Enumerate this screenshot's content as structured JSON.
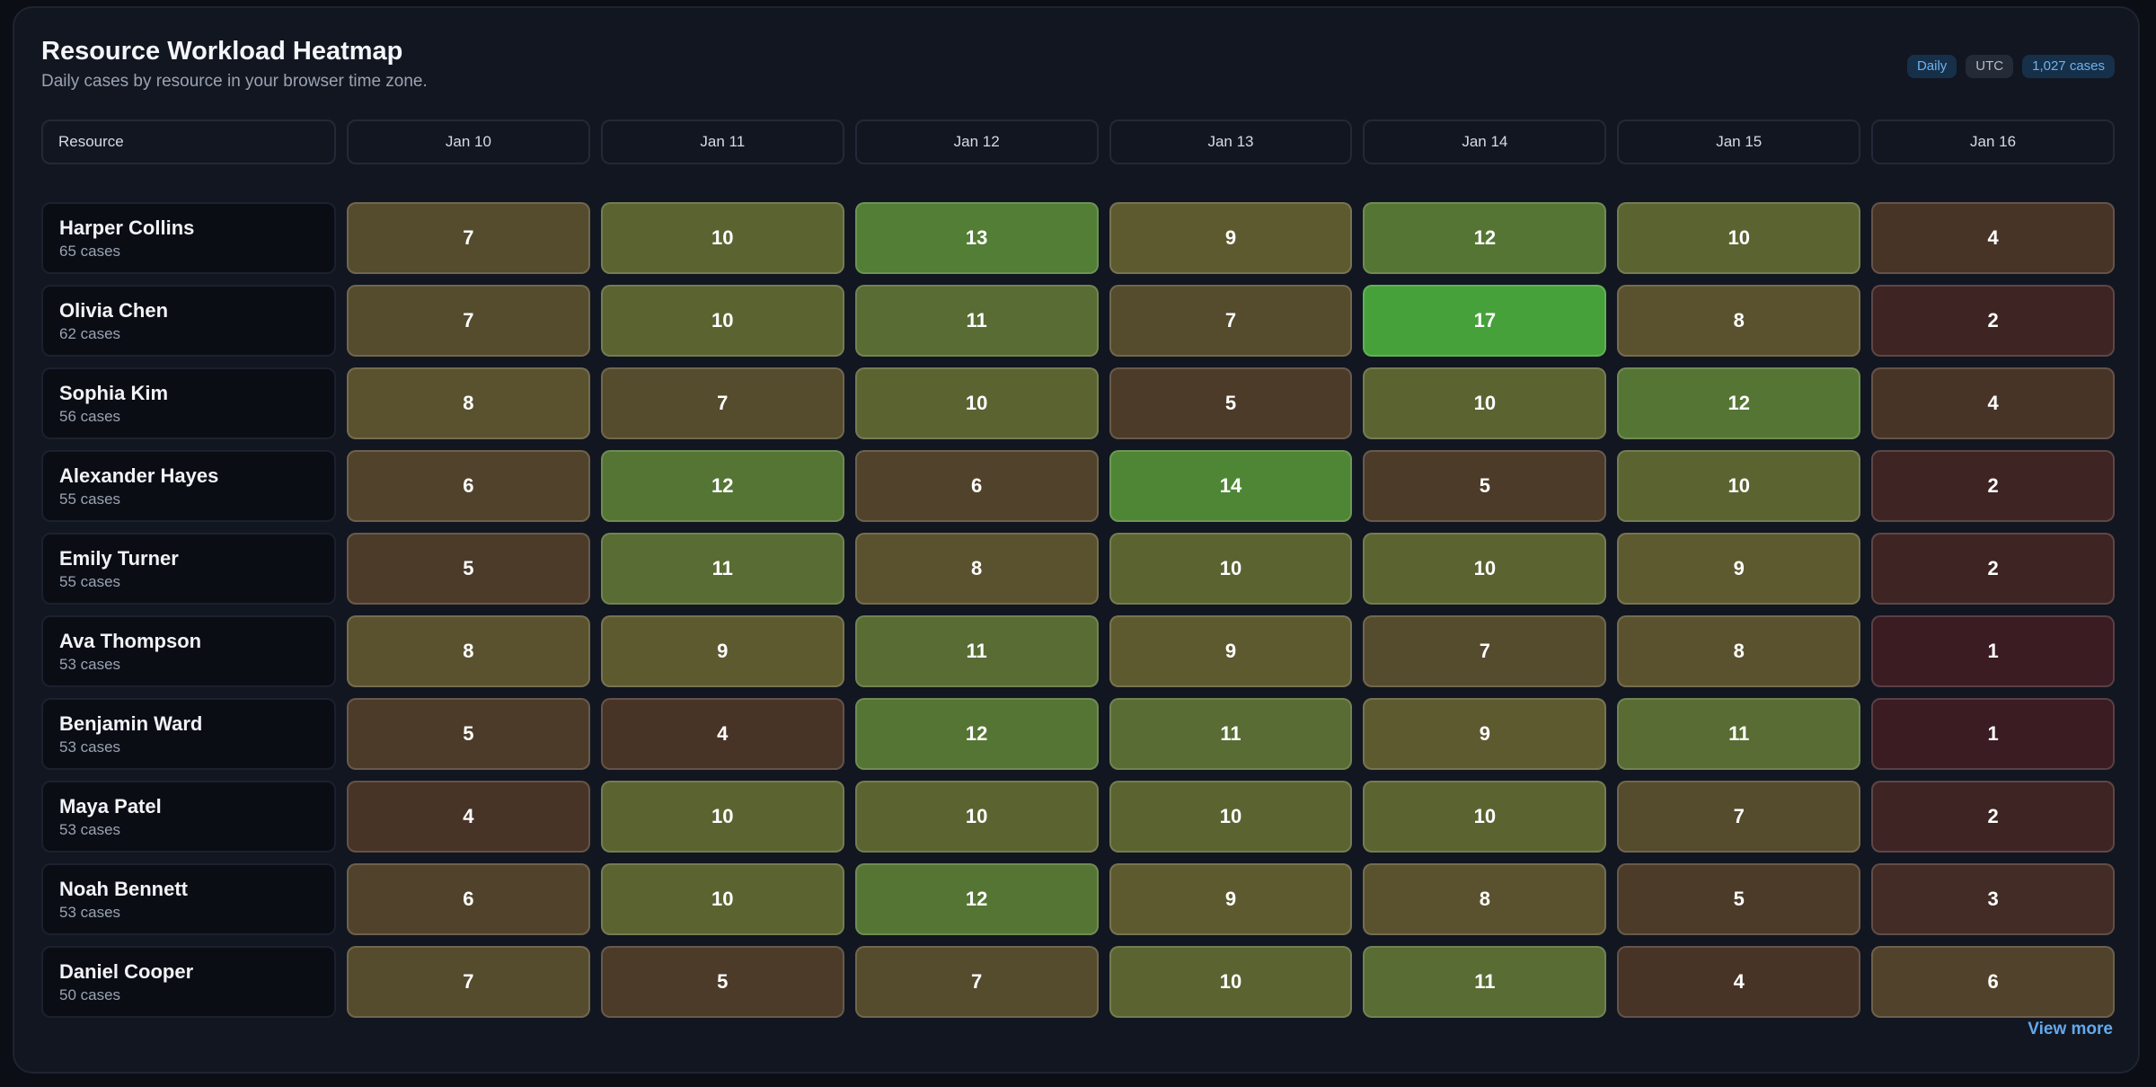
{
  "header": {
    "title": "Resource Workload Heatmap",
    "subtitle": "Daily cases by resource in your browser time zone.",
    "badges": {
      "granularity": "Daily",
      "timezone": "UTC",
      "total": "1,027 cases"
    }
  },
  "table": {
    "resource_header": "Resource"
  },
  "footer": {
    "view_more": "View more"
  },
  "colors": {
    "scale_low": "#3a1c22",
    "scale_mid": "#5e5a30",
    "scale_high": "#46a13a",
    "badge_accent": "#6fb1ee"
  },
  "chart_data": {
    "type": "heatmap",
    "title": "Resource Workload Heatmap",
    "x": [
      "Jan 10",
      "Jan 11",
      "Jan 12",
      "Jan 13",
      "Jan 14",
      "Jan 15",
      "Jan 16"
    ],
    "rows": [
      {
        "name": "Harper Collins",
        "total": "65 cases",
        "values": [
          7,
          10,
          13,
          9,
          12,
          10,
          4
        ]
      },
      {
        "name": "Olivia Chen",
        "total": "62 cases",
        "values": [
          7,
          10,
          11,
          7,
          17,
          8,
          2
        ]
      },
      {
        "name": "Sophia Kim",
        "total": "56 cases",
        "values": [
          8,
          7,
          10,
          5,
          10,
          12,
          4
        ]
      },
      {
        "name": "Alexander Hayes",
        "total": "55 cases",
        "values": [
          6,
          12,
          6,
          14,
          5,
          10,
          2
        ]
      },
      {
        "name": "Emily Turner",
        "total": "55 cases",
        "values": [
          5,
          11,
          8,
          10,
          10,
          9,
          2
        ]
      },
      {
        "name": "Ava Thompson",
        "total": "53 cases",
        "values": [
          8,
          9,
          11,
          9,
          7,
          8,
          1
        ]
      },
      {
        "name": "Benjamin Ward",
        "total": "53 cases",
        "values": [
          5,
          4,
          12,
          11,
          9,
          11,
          1
        ]
      },
      {
        "name": "Maya Patel",
        "total": "53 cases",
        "values": [
          4,
          10,
          10,
          10,
          10,
          7,
          2
        ]
      },
      {
        "name": "Noah Bennett",
        "total": "53 cases",
        "values": [
          6,
          10,
          12,
          9,
          8,
          5,
          3
        ]
      },
      {
        "name": "Daniel Cooper",
        "total": "50 cases",
        "values": [
          7,
          5,
          7,
          10,
          11,
          4,
          6
        ]
      }
    ],
    "value_range": [
      1,
      17
    ]
  }
}
